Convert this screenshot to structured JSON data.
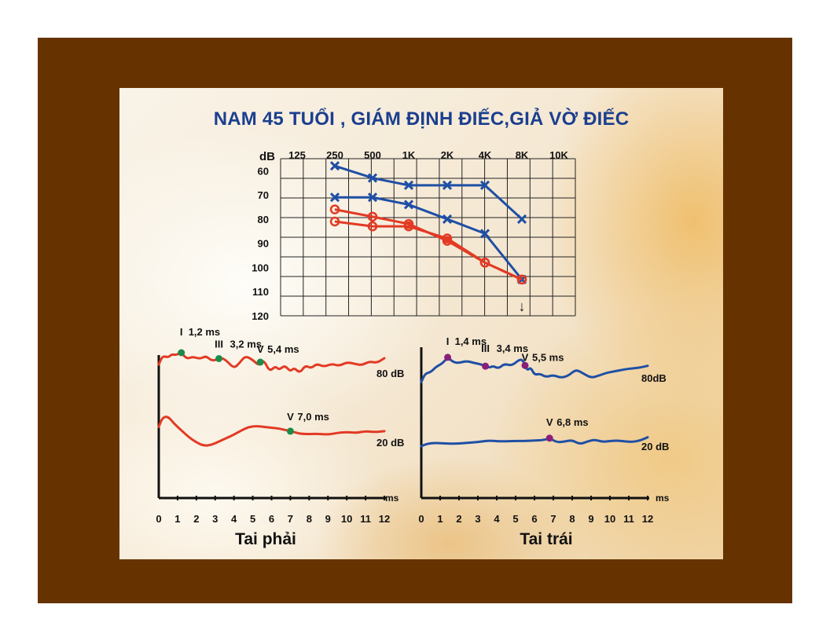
{
  "slide": {
    "title": "NAM 45 TUỔI , GIÁM ĐỊNH ĐIẾC,GIẢ VỜ ĐIẾC"
  },
  "colors": {
    "frame": "#663300",
    "blue": "#1f4fa5",
    "red": "#e23a24",
    "green_marker": "#1e8a4a",
    "purple_marker": "#8a1f7a"
  },
  "chart_data": [
    {
      "type": "line",
      "chart": "audiogram",
      "y_unit_label": "dB",
      "x_tick_labels": [
        "125",
        "250",
        "500",
        "1K",
        "2K",
        "4K",
        "8K",
        "10K"
      ],
      "y_tick_labels": [
        "60",
        "70",
        "80",
        "90",
        "100",
        "110",
        "120"
      ],
      "ylim": [
        55,
        120
      ],
      "y_inverted": true,
      "series": [
        {
          "color": "blue",
          "marker": "x",
          "points": [
            [
              "250",
              58
            ],
            [
              "500",
              63
            ],
            [
              "1K",
              66
            ],
            [
              "2K",
              66
            ],
            [
              "4K",
              66
            ],
            [
              "8K",
              80
            ]
          ]
        },
        {
          "color": "blue",
          "marker": "x",
          "points": [
            [
              "250",
              71
            ],
            [
              "500",
              71
            ],
            [
              "1K",
              74
            ],
            [
              "2K",
              80
            ],
            [
              "4K",
              86
            ],
            [
              "8K",
              105
            ]
          ]
        },
        {
          "color": "red",
          "marker": "o",
          "points": [
            [
              "250",
              76
            ],
            [
              "500",
              79
            ],
            [
              "1K",
              82
            ],
            [
              "2K",
              89
            ],
            [
              "4K",
              98
            ],
            [
              "8K",
              105
            ]
          ]
        },
        {
          "color": "red",
          "marker": "o",
          "points": [
            [
              "250",
              81
            ],
            [
              "500",
              83
            ],
            [
              "1K",
              83
            ],
            [
              "2K",
              88
            ],
            [
              "4K",
              98
            ],
            [
              "8K",
              105
            ]
          ]
        }
      ],
      "no_response": {
        "x": "8K",
        "color": "red",
        "symbol": "↓"
      }
    },
    {
      "type": "line",
      "chart": "abr",
      "caption": "Tai phải",
      "x_unit": "ms",
      "x_ticks": [
        "0",
        "1",
        "2",
        "3",
        "4",
        "5",
        "6",
        "7",
        "8",
        "9",
        "10",
        "11",
        "12"
      ],
      "xlim": [
        0,
        12
      ],
      "waves": [
        {
          "level_label": "80 dB",
          "color": "red",
          "x": [
            0,
            0.2,
            0.5,
            0.7,
            0.9,
            1.2,
            1.5,
            1.8,
            2.2,
            2.5,
            2.8,
            3.1,
            3.3,
            3.6,
            4.0,
            4.3,
            4.6,
            5.0,
            5.3,
            5.4,
            5.6,
            5.9,
            6.2,
            6.4,
            6.7,
            7.0,
            7.2,
            7.5,
            7.8,
            8.1,
            8.4,
            8.8,
            9.2,
            9.6,
            10.0,
            10.4,
            10.8,
            11.2,
            11.6,
            12.0
          ],
          "y": [
            0,
            0.55,
            0.45,
            0.65,
            0.6,
            0.75,
            0.35,
            0.5,
            0.35,
            0.55,
            0.25,
            0.3,
            0.45,
            0.25,
            -0.25,
            0.1,
            0.55,
            0.3,
            -0.05,
            0.15,
            0.25,
            -0.45,
            -0.1,
            -0.35,
            -0.05,
            -0.45,
            -0.2,
            -0.55,
            -0.05,
            -0.25,
            0.05,
            -0.15,
            0.05,
            -0.1,
            0.15,
            0.05,
            -0.05,
            0.2,
            0.1,
            0.4
          ],
          "peaks": [
            {
              "wave": "I",
              "latency_ms": 1.2,
              "label": "1,2 ms",
              "marker_color": "green"
            },
            {
              "wave": "III",
              "latency_ms": 3.2,
              "label": "3,2 ms",
              "marker_color": "green"
            },
            {
              "wave": "V",
              "latency_ms": 5.4,
              "label": "5,4 ms",
              "marker_color": "green"
            }
          ]
        },
        {
          "level_label": "20 dB",
          "color": "red",
          "x": [
            0,
            0.2,
            0.5,
            0.8,
            1.2,
            1.6,
            2.0,
            2.4,
            2.8,
            3.2,
            3.6,
            4.0,
            4.4,
            4.8,
            5.2,
            5.6,
            6.0,
            6.4,
            6.8,
            7.0,
            7.2,
            7.5,
            8.0,
            8.5,
            9.0,
            9.5,
            10.0,
            10.5,
            11.0,
            11.5,
            12.0
          ],
          "y": [
            0.3,
            0.85,
            0.9,
            0.5,
            0.1,
            -0.3,
            -0.6,
            -0.8,
            -0.75,
            -0.55,
            -0.35,
            -0.15,
            0.1,
            0.3,
            0.35,
            0.3,
            0.25,
            0.2,
            0.1,
            0.05,
            0.0,
            -0.1,
            -0.12,
            -0.1,
            -0.15,
            -0.05,
            0.0,
            -0.05,
            0.05,
            0.0,
            0.05
          ],
          "peaks": [
            {
              "wave": "V",
              "latency_ms": 7.0,
              "label": "7,0 ms",
              "marker_color": "green"
            }
          ]
        }
      ]
    },
    {
      "type": "line",
      "chart": "abr",
      "caption": "Tai trái",
      "x_unit": "ms",
      "x_ticks": [
        "0",
        "1",
        "2",
        "3",
        "4",
        "5",
        "6",
        "7",
        "8",
        "9",
        "10",
        "11",
        "12"
      ],
      "xlim": [
        0,
        12
      ],
      "waves": [
        {
          "level_label": "80dB",
          "color": "blue",
          "x": [
            0,
            0.2,
            0.5,
            0.8,
            1.1,
            1.4,
            1.7,
            2.0,
            2.4,
            2.8,
            3.2,
            3.6,
            3.8,
            4.1,
            4.4,
            4.8,
            5.2,
            5.4,
            5.6,
            5.8,
            6.0,
            6.3,
            6.6,
            7.0,
            7.4,
            7.8,
            8.2,
            8.6,
            9.0,
            9.4,
            9.8,
            10.2,
            10.6,
            11.0,
            11.5,
            12.0
          ],
          "y": [
            -0.8,
            -0.2,
            -0.1,
            0.3,
            0.5,
            0.95,
            0.6,
            0.55,
            0.7,
            0.55,
            0.45,
            0.2,
            0.35,
            0.15,
            0.5,
            0.35,
            0.8,
            0.75,
            0.0,
            0.25,
            -0.3,
            -0.2,
            -0.45,
            -0.3,
            -0.5,
            -0.35,
            0.1,
            -0.2,
            -0.5,
            -0.35,
            -0.15,
            -0.05,
            0.05,
            0.15,
            0.2,
            0.35
          ],
          "peaks": [
            {
              "wave": "I",
              "latency_ms": 1.4,
              "label": "1,4 ms",
              "marker_color": "purple"
            },
            {
              "wave": "III",
              "latency_ms": 3.4,
              "label": "3,4 ms",
              "marker_color": "purple"
            },
            {
              "wave": "V",
              "latency_ms": 5.5,
              "label": "5,5 ms",
              "marker_color": "purple"
            }
          ]
        },
        {
          "level_label": "20 dB",
          "color": "blue",
          "x": [
            0,
            0.3,
            0.7,
            1.2,
            1.8,
            2.4,
            3.0,
            3.6,
            4.2,
            4.8,
            5.4,
            6.0,
            6.5,
            6.8,
            7.2,
            7.6,
            8.0,
            8.4,
            8.8,
            9.2,
            9.6,
            10.0,
            10.4,
            10.8,
            11.2,
            11.6,
            12.0
          ],
          "y": [
            -0.5,
            -0.25,
            -0.15,
            -0.2,
            -0.25,
            -0.15,
            -0.05,
            0.1,
            0.0,
            0.05,
            0.05,
            0.1,
            0.15,
            0.35,
            -0.1,
            0.0,
            0.15,
            -0.3,
            0.0,
            0.2,
            -0.05,
            0.05,
            0.1,
            0.0,
            -0.05,
            0.1,
            0.45
          ],
          "peaks": [
            {
              "wave": "V",
              "latency_ms": 6.8,
              "label": "6,8 ms",
              "marker_color": "purple"
            }
          ]
        }
      ]
    }
  ]
}
